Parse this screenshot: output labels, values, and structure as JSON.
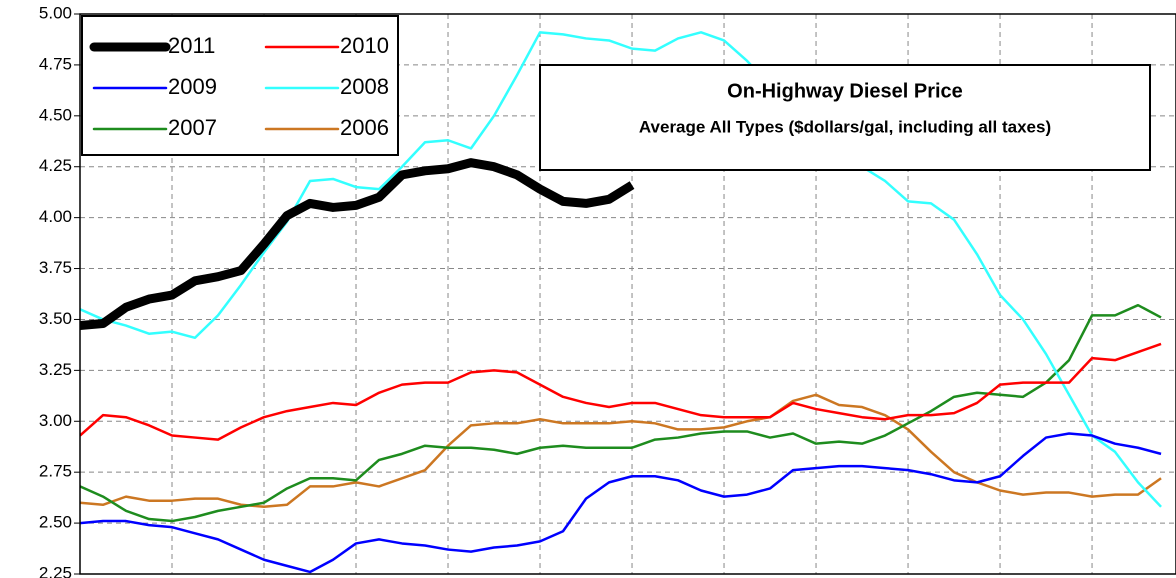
{
  "chart_data": {
    "type": "line",
    "title": "On-Highway Diesel Price",
    "subtitle": "Average All Types ($dollars/gal, including all taxes)",
    "legend": "upper left",
    "grid": true,
    "x": [
      0,
      1,
      2,
      3,
      4,
      5,
      6,
      7,
      8,
      9,
      10,
      11,
      12,
      13,
      14,
      15,
      16,
      17,
      18,
      19,
      20,
      21,
      22,
      23,
      24,
      25,
      26,
      27,
      28,
      29,
      30,
      31,
      32,
      33,
      34,
      35,
      36,
      37,
      38,
      39,
      40,
      41,
      42,
      43,
      44,
      45,
      46,
      47
    ],
    "xlim": [
      0,
      47.65
    ],
    "xticks": [
      0,
      4,
      8,
      12,
      16,
      20,
      24,
      28,
      32,
      36,
      40,
      44
    ],
    "ylim": [
      2.25,
      5.0
    ],
    "yticks": [
      {
        "value": 2.25,
        "label": "2.25"
      },
      {
        "value": 2.5,
        "label": "2.50"
      },
      {
        "value": 2.75,
        "label": "2.75"
      },
      {
        "value": 3.0,
        "label": "3.00"
      },
      {
        "value": 3.25,
        "label": "3.25"
      },
      {
        "value": 3.5,
        "label": "3.50"
      },
      {
        "value": 3.75,
        "label": "3.75"
      },
      {
        "value": 4.0,
        "label": "4.00"
      },
      {
        "value": 4.25,
        "label": "4.25"
      },
      {
        "value": 4.5,
        "label": "4.50"
      },
      {
        "value": 4.75,
        "label": "4.75"
      },
      {
        "value": 5.0,
        "label": "5.00"
      }
    ],
    "series": [
      {
        "name": "2011",
        "color": "#000000",
        "width": 9,
        "values": [
          3.47,
          3.48,
          3.56,
          3.6,
          3.62,
          3.69,
          3.71,
          3.74,
          3.87,
          4.01,
          4.07,
          4.05,
          4.06,
          4.1,
          4.21,
          4.23,
          4.24,
          4.27,
          4.25,
          4.21,
          4.14,
          4.08,
          4.07,
          4.09,
          4.16,
          null,
          null,
          null,
          null,
          null,
          null,
          null,
          null,
          null,
          null,
          null,
          null,
          null,
          null,
          null,
          null,
          null,
          null,
          null,
          null,
          null,
          null,
          null
        ]
      },
      {
        "name": "2010",
        "color": "#ff0000",
        "width": 2.5,
        "values": [
          2.93,
          3.03,
          3.02,
          2.98,
          2.93,
          2.92,
          2.91,
          2.97,
          3.02,
          3.05,
          3.07,
          3.09,
          3.08,
          3.14,
          3.18,
          3.19,
          3.19,
          3.24,
          3.25,
          3.24,
          3.18,
          3.12,
          3.09,
          3.07,
          3.09,
          3.09,
          3.06,
          3.03,
          3.02,
          3.02,
          3.02,
          3.09,
          3.06,
          3.04,
          3.02,
          3.01,
          3.03,
          3.03,
          3.04,
          3.09,
          3.18,
          3.19,
          3.19,
          3.19,
          3.31,
          3.3,
          3.34,
          3.38
        ]
      },
      {
        "name": "2009",
        "color": "#0000ff",
        "width": 2.5,
        "values": [
          2.5,
          2.51,
          2.51,
          2.49,
          2.48,
          2.45,
          2.42,
          2.37,
          2.32,
          2.29,
          2.26,
          2.32,
          2.4,
          2.42,
          2.4,
          2.39,
          2.37,
          2.36,
          2.38,
          2.39,
          2.41,
          2.46,
          2.62,
          2.7,
          2.73,
          2.73,
          2.71,
          2.66,
          2.63,
          2.64,
          2.67,
          2.76,
          2.77,
          2.78,
          2.78,
          2.77,
          2.76,
          2.74,
          2.71,
          2.7,
          2.73,
          2.83,
          2.92,
          2.94,
          2.93,
          2.89,
          2.87,
          2.84
        ]
      },
      {
        "name": "2008",
        "color": "#33ffff",
        "width": 2.5,
        "values": [
          3.55,
          3.5,
          3.47,
          3.43,
          3.44,
          3.41,
          3.52,
          3.67,
          3.83,
          3.98,
          4.18,
          4.19,
          4.15,
          4.14,
          4.25,
          4.37,
          4.38,
          4.34,
          4.5,
          4.7,
          4.91,
          4.9,
          4.88,
          4.87,
          4.83,
          4.82,
          4.88,
          4.91,
          4.87,
          4.77,
          4.65,
          4.5,
          4.38,
          4.3,
          4.25,
          4.18,
          4.08,
          4.07,
          3.99,
          3.82,
          3.62,
          3.5,
          3.33,
          3.13,
          2.93,
          2.85,
          2.7,
          2.58
        ]
      },
      {
        "name": "2007",
        "color": "#1e8c1e",
        "width": 2.5,
        "values": [
          2.68,
          2.63,
          2.56,
          2.52,
          2.51,
          2.53,
          2.56,
          2.58,
          2.6,
          2.67,
          2.72,
          2.72,
          2.71,
          2.81,
          2.84,
          2.88,
          2.87,
          2.87,
          2.86,
          2.84,
          2.87,
          2.88,
          2.87,
          2.87,
          2.87,
          2.91,
          2.92,
          2.94,
          2.95,
          2.95,
          2.92,
          2.94,
          2.89,
          2.9,
          2.89,
          2.93,
          2.99,
          3.05,
          3.12,
          3.14,
          3.13,
          3.12,
          3.19,
          3.3,
          3.52,
          3.52,
          3.57,
          3.51
        ]
      },
      {
        "name": "2006",
        "color": "#cc7722",
        "width": 2.5,
        "values": [
          2.6,
          2.59,
          2.63,
          2.61,
          2.61,
          2.62,
          2.62,
          2.59,
          2.58,
          2.59,
          2.68,
          2.68,
          2.7,
          2.68,
          2.72,
          2.76,
          2.88,
          2.98,
          2.99,
          2.99,
          3.01,
          2.99,
          2.99,
          2.99,
          3.0,
          2.99,
          2.96,
          2.96,
          2.97,
          3.0,
          3.02,
          3.1,
          3.13,
          3.08,
          3.07,
          3.03,
          2.96,
          2.85,
          2.75,
          2.7,
          2.66,
          2.64,
          2.65,
          2.65,
          2.63,
          2.64,
          2.64,
          2.72
        ]
      }
    ]
  }
}
